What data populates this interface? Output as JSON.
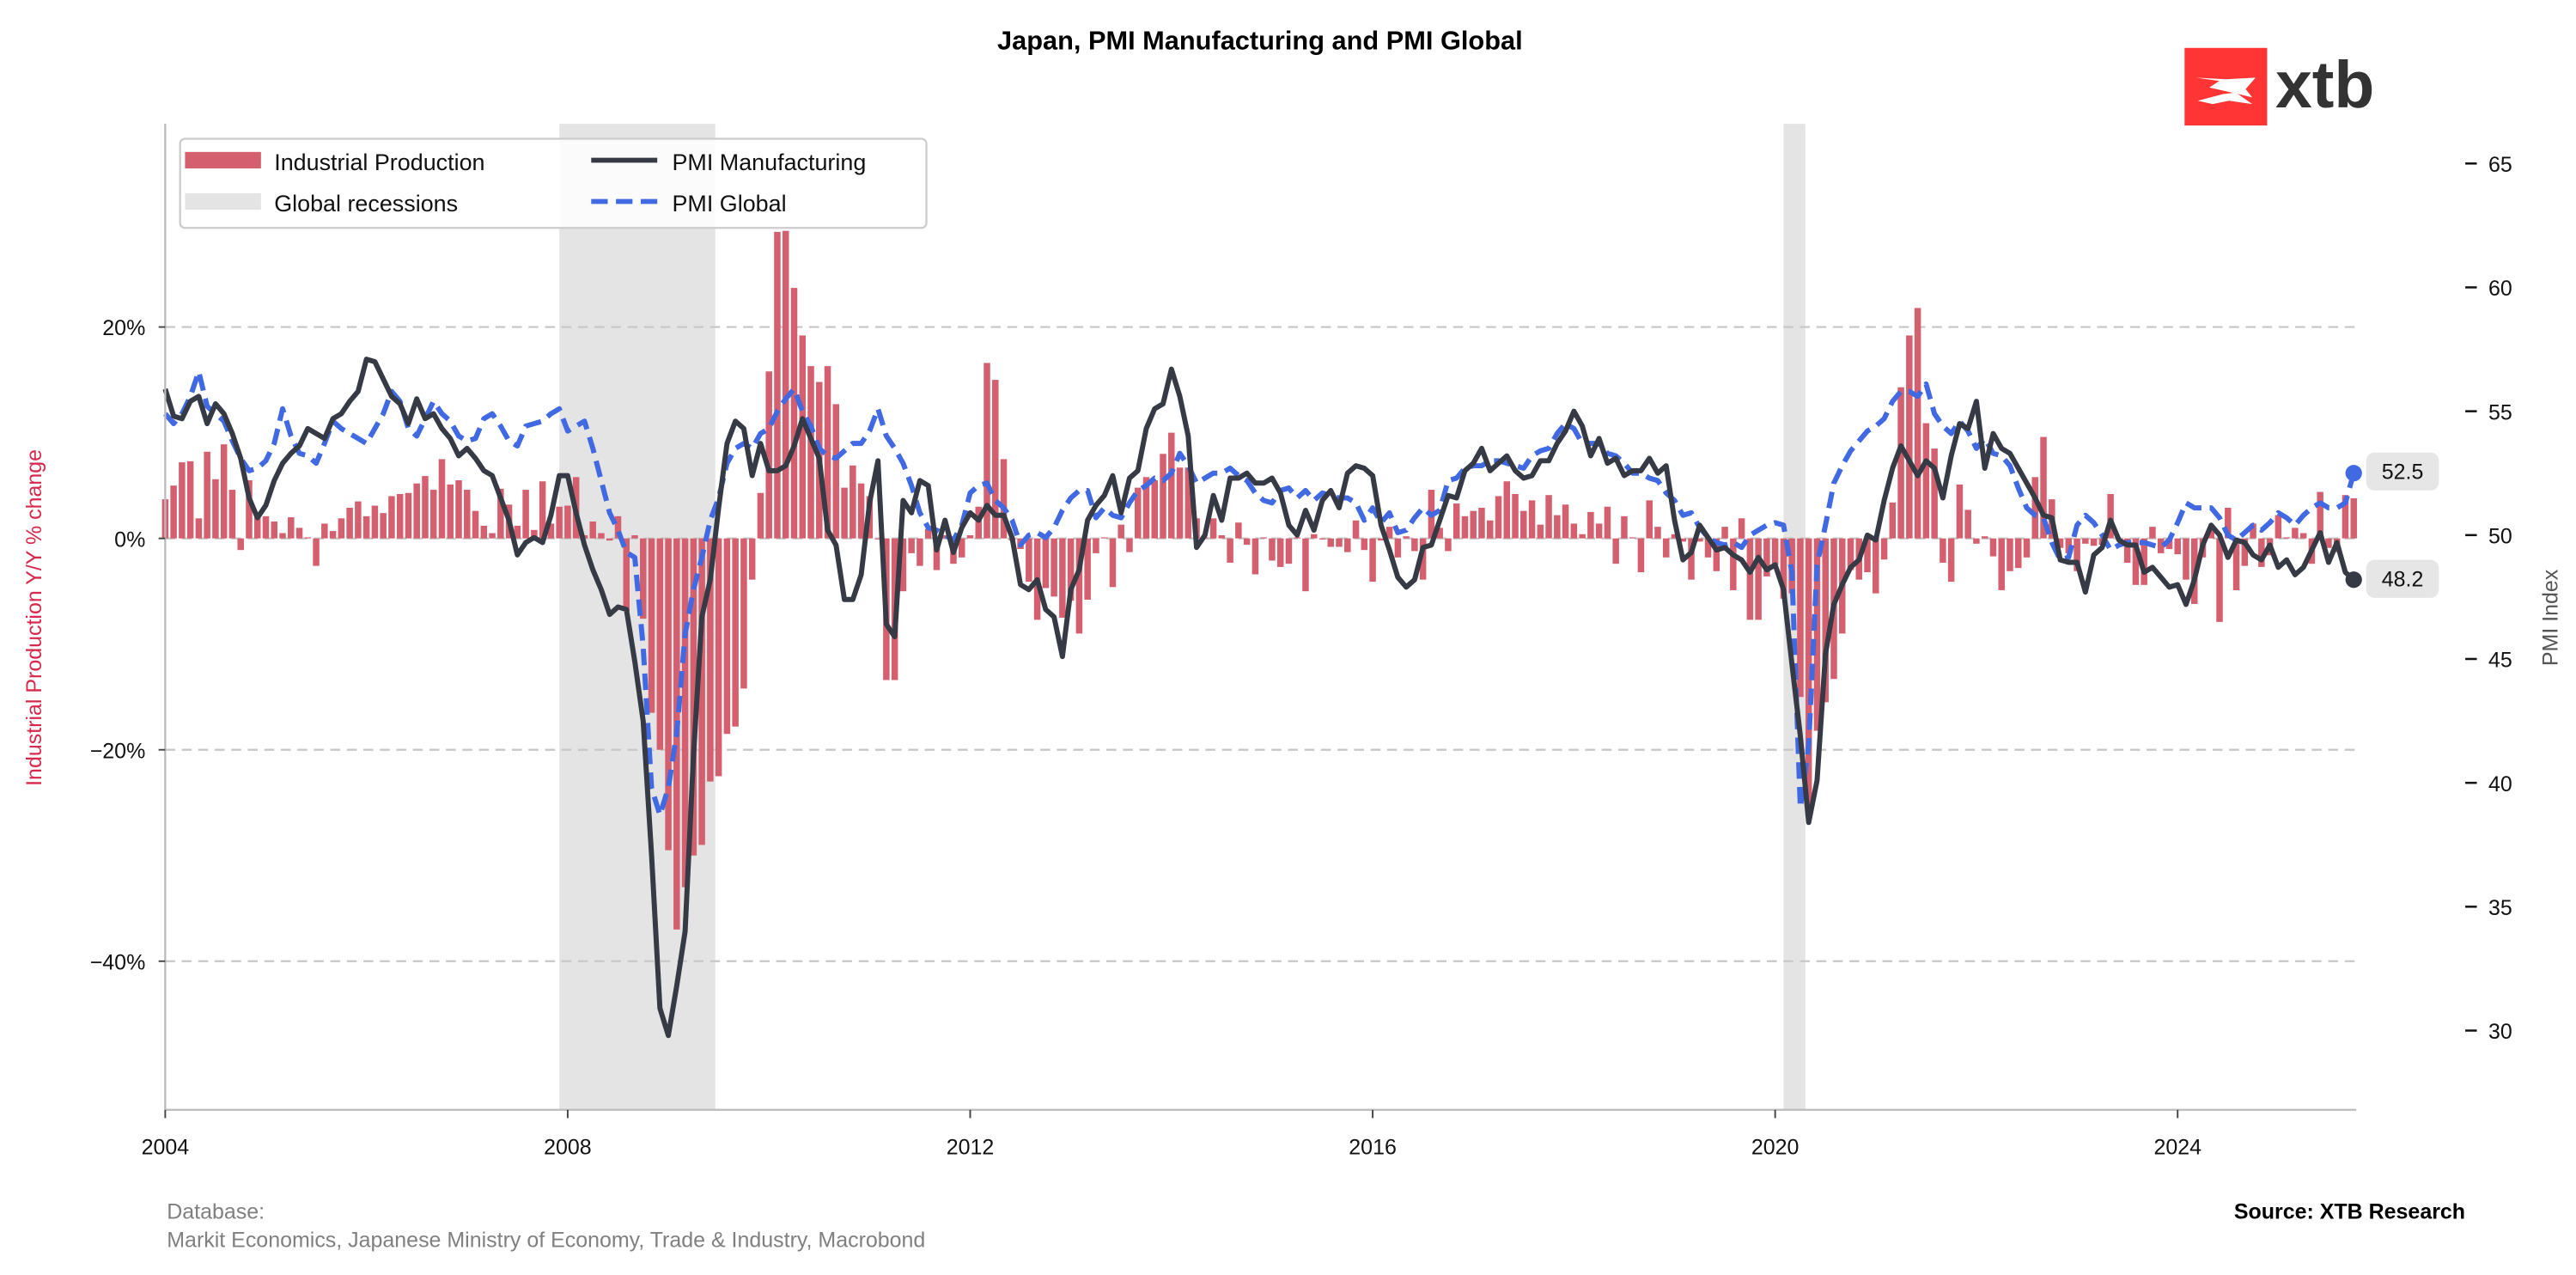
{
  "logo": {
    "text": "xtb",
    "brand_color": "#ff3434"
  },
  "footer": {
    "database_label": "Database:",
    "database_sources": "Markit Economics, Japanese Ministry of Economy, Trade & Industry, Macrobond",
    "source": "Source: XTB Research"
  },
  "chart_data": {
    "type": "bar+line",
    "title": "Japan, PMI Manufacturing and PMI Global",
    "frequency": "monthly",
    "ylabel_left": "Industrial Production Y/Y % change",
    "ylabel_right": "PMI Index",
    "ylim_left": [
      -54,
      39
    ],
    "ylim_right": [
      26.8,
      66.6
    ],
    "xlim": [
      "2004-01",
      "2025-10"
    ],
    "grid": "horizontal dashed at left-axis ticks",
    "legend_position": "top-left",
    "x_ticks": [
      "2004",
      "2008",
      "2012",
      "2016",
      "2020",
      "2024"
    ],
    "left_ticks": [
      {
        "value": 20,
        "label": "20%"
      },
      {
        "value": 0,
        "label": "0%"
      },
      {
        "value": -20,
        "label": "−20%"
      },
      {
        "value": -40,
        "label": "−40%"
      }
    ],
    "right_ticks": [
      {
        "value": 65,
        "label": "65"
      },
      {
        "value": 60,
        "label": "60"
      },
      {
        "value": 55,
        "label": "55"
      },
      {
        "value": 50,
        "label": "50"
      },
      {
        "value": 45,
        "label": "45"
      },
      {
        "value": 40,
        "label": "40"
      },
      {
        "value": 35,
        "label": "35"
      },
      {
        "value": 30,
        "label": "30"
      }
    ],
    "recessions": [
      {
        "name": "Global recessions",
        "start": "2007-12",
        "end": "2009-06"
      },
      {
        "name": "Global recessions",
        "start": "2020-02",
        "end": "2020-04"
      }
    ],
    "legend": [
      {
        "label": "Industrial Production",
        "kind": "bar"
      },
      {
        "label": "Global recessions",
        "kind": "shade"
      },
      {
        "label": "PMI Manufacturing",
        "kind": "line"
      },
      {
        "label": "PMI Global",
        "kind": "dashed-line"
      }
    ],
    "colors": {
      "industrial_production": "#d4606f",
      "recession": "#e4e4e4",
      "pmi_manufacturing": "#363a45",
      "pmi_global": "#4169e1",
      "left_axis_label": "#d6294c",
      "right_axis_label": "#555555",
      "grid": "#c8c8c8"
    },
    "end_labels": {
      "pmi_global": "52.5",
      "pmi_manufacturing": "48.2"
    },
    "series": {
      "industrial_production": {
        "name": "Industrial Production",
        "axis": "left",
        "unit": "%",
        "values_by_year": {
          "2004": [
            3.7,
            5.0,
            7.2,
            7.3,
            1.9,
            8.2,
            5.6,
            8.9,
            4.6,
            -1.1,
            5.5,
            2.2
          ],
          "2005": [
            2.1,
            1.6,
            0.5,
            2.0,
            1.0,
            0.1,
            -2.6,
            1.4,
            0.7,
            1.9,
            2.9,
            3.5
          ],
          "2006": [
            2.1,
            3.1,
            2.4,
            4.0,
            4.2,
            4.3,
            5.2,
            5.9,
            4.6,
            7.5,
            5.1,
            5.5
          ],
          "2007": [
            4.6,
            2.6,
            1.2,
            0.5,
            4.7,
            3.2,
            1.2,
            4.6,
            0.8,
            5.4,
            1.4,
            3.0
          ],
          "2008": [
            3.1,
            5.8,
            0.3,
            1.6,
            0.5,
            -0.2,
            2.1,
            -6.9,
            0.3,
            -7.6,
            -16.5,
            -20.0
          ],
          "2009": [
            -29.5,
            -37.0,
            -33.0,
            -30.0,
            -29.0,
            -23.0,
            -22.5,
            -18.5,
            -17.8,
            -14.2,
            -3.9,
            4.3
          ],
          "2010": [
            15.8,
            29.0,
            29.1,
            23.7,
            19.2,
            16.3,
            14.8,
            16.3,
            12.7,
            4.8,
            6.9,
            5.2
          ],
          "2011": [
            4.0,
            0.0,
            -13.4,
            -13.4,
            -5.0,
            -1.4,
            -2.6,
            0.9,
            -3.0,
            0.3,
            -2.4,
            -1.8
          ],
          "2012": [
            0.3,
            3.0,
            16.6,
            15.0,
            7.5,
            -0.2,
            -1.0,
            -4.1,
            -7.7,
            -4.7,
            -5.5,
            -7.5
          ],
          "2013": [
            -5.9,
            -9.0,
            -5.8,
            -1.4,
            0.1,
            -4.6,
            1.3,
            -1.3,
            4.8,
            5.8,
            5.5,
            8.0
          ],
          "2014": [
            10.0,
            6.7,
            6.7,
            1.9,
            0.1,
            1.9,
            0.3,
            -2.3,
            1.5,
            -0.6,
            -3.4,
            0.1
          ],
          "2015": [
            -2.1,
            -2.7,
            -2.4,
            0.1,
            -5.0,
            0.4,
            -0.1,
            -0.8,
            -0.8,
            -1.3,
            1.7,
            -1.1
          ],
          "2016": [
            -4.1,
            -0.2,
            1.1,
            -1.8,
            0.2,
            -1.2,
            -3.9,
            4.6,
            1.0,
            -1.2,
            3.3,
            2.1
          ],
          "2017": [
            2.6,
            2.9,
            1.7,
            4.0,
            5.4,
            4.2,
            2.6,
            3.6,
            1.3,
            4.1,
            2.2,
            3.2
          ],
          "2018": [
            1.4,
            0.4,
            2.5,
            1.4,
            3.0,
            -2.4,
            2.1,
            0.1,
            -3.2,
            3.6,
            1.1,
            -1.8
          ],
          "2019": [
            0.4,
            -0.3,
            -3.9,
            -0.3,
            -1.8,
            -3.1,
            1.1,
            -4.9,
            1.9,
            -7.7,
            -7.7,
            -3.6
          ],
          "2020": [
            -2.5,
            -5.7,
            -5.2,
            -15.0,
            -26.3,
            -18.2,
            -15.5,
            -13.3,
            -9.0,
            -3.0,
            -3.9,
            -3.2
          ],
          "2021": [
            -5.2,
            -2.0,
            3.4,
            14.3,
            19.2,
            21.8,
            10.9,
            8.5,
            -2.3,
            -4.1,
            5.1,
            2.7
          ],
          "2022": [
            -0.5,
            0.2,
            -1.7,
            -4.9,
            -3.1,
            -2.8,
            -1.8,
            5.8,
            9.6,
            3.7,
            -0.9,
            -1.4
          ],
          "2023": [
            -3.1,
            -0.5,
            -0.7,
            -0.6,
            4.2,
            0.0,
            -2.3,
            -4.4,
            -4.4,
            1.1,
            -1.4,
            -1.0
          ],
          "2024": [
            -1.5,
            -3.9,
            -6.2,
            -1.8,
            1.1,
            -7.9,
            2.9,
            -4.9,
            -2.6,
            1.4,
            -2.7,
            -1.6
          ],
          "2025": [
            2.2,
            0.1,
            1.0,
            0.5,
            -2.4,
            4.4,
            -0.9,
            -1.3,
            4.1,
            3.8
          ]
        }
      },
      "pmi_manufacturing": {
        "name": "PMI Manufacturing",
        "axis": "right",
        "values_by_year": {
          "2004": [
            55.9,
            54.8,
            54.7,
            55.4,
            55.6,
            54.5,
            55.3,
            54.9,
            54.1,
            53.1,
            51.5,
            50.7
          ],
          "2005": [
            51.2,
            52.2,
            52.9,
            53.3,
            53.6,
            54.3,
            54.1,
            53.9,
            54.7,
            54.9,
            55.4,
            55.8
          ],
          "2006": [
            57.1,
            57.0,
            56.3,
            55.6,
            55.3,
            54.5,
            55.5,
            54.7,
            54.9,
            54.3,
            53.9,
            53.2
          ],
          "2007": [
            53.5,
            53.1,
            52.6,
            52.4,
            51.5,
            50.6,
            49.2,
            49.7,
            49.9,
            49.7,
            50.8,
            52.4
          ],
          "2008": [
            52.4,
            50.9,
            49.6,
            48.6,
            47.8,
            46.8,
            47.1,
            47.0,
            44.9,
            42.5,
            37.1,
            30.9
          ],
          "2009": [
            29.8,
            31.8,
            34.0,
            41.1,
            46.7,
            48.2,
            51.1,
            53.7,
            54.6,
            54.3,
            52.4,
            53.7
          ],
          "2010": [
            52.6,
            52.6,
            52.8,
            53.6,
            54.7,
            53.9,
            53.1,
            50.2,
            49.6,
            47.4,
            47.4,
            48.4
          ],
          "2011": [
            51.3,
            53.0,
            46.4,
            45.9,
            51.4,
            50.9,
            52.2,
            52.0,
            49.4,
            50.6,
            49.3,
            50.3
          ],
          "2012": [
            50.9,
            50.6,
            51.2,
            50.8,
            50.8,
            49.9,
            48.0,
            47.8,
            48.2,
            47.0,
            46.7,
            45.1
          ],
          "2013": [
            47.8,
            48.6,
            50.6,
            51.2,
            51.6,
            52.4,
            50.9,
            52.3,
            52.6,
            54.3,
            55.1,
            55.3
          ],
          "2014": [
            56.7,
            55.6,
            54.0,
            49.5,
            50.0,
            51.6,
            50.6,
            52.3,
            52.3,
            52.5,
            52.1,
            52.1
          ],
          "2015": [
            52.3,
            51.7,
            50.4,
            50.0,
            51.0,
            50.2,
            51.4,
            51.8,
            51.1,
            52.5,
            52.8,
            52.7
          ],
          "2016": [
            52.4,
            50.4,
            49.4,
            48.3,
            47.9,
            48.2,
            49.5,
            49.6,
            50.6,
            51.6,
            51.5,
            52.6
          ],
          "2017": [
            52.9,
            53.5,
            52.6,
            52.9,
            53.2,
            52.6,
            52.3,
            52.4,
            53.0,
            53.0,
            53.7,
            54.2
          ],
          "2018": [
            55.0,
            54.4,
            53.2,
            53.9,
            52.9,
            53.1,
            52.4,
            52.6,
            52.6,
            53.1,
            52.5,
            52.8
          ],
          "2019": [
            50.6,
            49.0,
            49.3,
            50.4,
            49.9,
            49.4,
            49.5,
            49.2,
            49.0,
            48.5,
            49.1,
            48.6
          ],
          "2020": [
            48.8,
            47.8,
            44.8,
            41.9,
            38.4,
            40.1,
            45.2,
            47.2,
            48.0,
            48.7,
            49.0,
            50.0
          ],
          "2021": [
            49.8,
            51.4,
            52.7,
            53.6,
            53.0,
            52.4,
            53.0,
            52.7,
            51.5,
            53.2,
            54.5,
            54.3
          ],
          "2022": [
            55.4,
            52.7,
            54.1,
            53.5,
            53.3,
            52.7,
            52.1,
            51.5,
            50.8,
            50.7,
            49.0,
            48.9
          ],
          "2023": [
            48.9,
            47.7,
            49.2,
            49.5,
            50.6,
            49.8,
            49.6,
            49.6,
            48.5,
            48.7,
            48.3,
            47.9
          ],
          "2024": [
            48.0,
            47.2,
            48.2,
            49.6,
            50.4,
            50.0,
            49.1,
            49.8,
            49.7,
            49.2,
            49.0,
            49.6
          ],
          "2025": [
            48.7,
            49.0,
            48.4,
            48.7,
            49.4,
            50.1,
            48.9,
            49.7,
            48.5,
            48.2
          ]
        }
      },
      "pmi_global": {
        "name": "PMI Global",
        "axis": "right",
        "values_by_year": {
          "2004": [
            54.9,
            54.5,
            54.9,
            55.6,
            56.6,
            55.2,
            54.9,
            54.6,
            53.8,
            53.1,
            52.6,
            52.7
          ],
          "2005": [
            53.0,
            53.7,
            55.1,
            54.0,
            53.3,
            53.2,
            52.9,
            53.7,
            54.6,
            54.3,
            54.1,
            53.9
          ],
          "2006": [
            53.7,
            54.3,
            54.9,
            55.8,
            55.4,
            54.3,
            54.0,
            54.7,
            55.4,
            54.9,
            54.6,
            54.0
          ],
          "2007": [
            53.8,
            53.9,
            54.7,
            54.9,
            54.4,
            53.8,
            53.6,
            54.4,
            54.5,
            54.6,
            54.9,
            55.1
          ],
          "2008": [
            54.2,
            54.4,
            54.6,
            53.5,
            52.2,
            50.9,
            50.2,
            49.3,
            49.1,
            45.5,
            39.8,
            38.7
          ],
          "2009": [
            39.8,
            42.0,
            46.0,
            47.8,
            49.1,
            50.6,
            51.5,
            52.9,
            53.5,
            53.7,
            53.5,
            54.1
          ],
          "2010": [
            54.3,
            55.0,
            55.5,
            55.9,
            55.0,
            54.4,
            53.5,
            53.2,
            53.1,
            53.4,
            53.7,
            53.7
          ],
          "2011": [
            54.2,
            55.1,
            54.0,
            53.5,
            52.9,
            52.0,
            50.9,
            50.3,
            50.2,
            50.0,
            49.8,
            50.4
          ],
          "2012": [
            51.7,
            52.0,
            52.1,
            51.4,
            51.1,
            50.6,
            49.6,
            50.0,
            50.1,
            49.9,
            50.3,
            51.0
          ],
          "2013": [
            51.5,
            51.8,
            51.8,
            50.7,
            51.1,
            50.8,
            50.7,
            51.3,
            51.8,
            52.0,
            52.3,
            52.2
          ],
          "2014": [
            52.5,
            53.3,
            52.8,
            52.1,
            52.3,
            52.5,
            52.5,
            52.7,
            52.4,
            52.2,
            51.7,
            51.4
          ],
          "2015": [
            51.3,
            51.8,
            51.9,
            51.5,
            51.8,
            51.4,
            51.7,
            51.6,
            51.5,
            51.5,
            51.3,
            50.6
          ],
          "2016": [
            51.1,
            50.5,
            50.9,
            50.1,
            50.2,
            50.7,
            51.1,
            50.8,
            51.0,
            52.2,
            52.3,
            52.7
          ],
          "2017": [
            52.8,
            52.8,
            53.0,
            53.0,
            52.9,
            52.8,
            52.7,
            53.2,
            53.4,
            53.5,
            54.1,
            54.5
          ],
          "2018": [
            54.3,
            53.7,
            53.7,
            53.7,
            53.3,
            53.2,
            52.9,
            52.5,
            52.5,
            52.3,
            52.2,
            51.7
          ],
          "2019": [
            51.4,
            50.8,
            50.9,
            50.3,
            49.9,
            49.7,
            49.6,
            49.7,
            49.5,
            50.0,
            50.2,
            50.4
          ],
          "2020": [
            50.5,
            50.4,
            48.5,
            39.0,
            41.5,
            48.8,
            50.4,
            52.1,
            52.8,
            53.4,
            53.8,
            54.2
          ],
          "2021": [
            54.4,
            54.7,
            55.4,
            55.8,
            55.8,
            55.6,
            56.1,
            54.9,
            54.4,
            54.1,
            54.6,
            54.2
          ],
          "2022": [
            53.5,
            53.9,
            53.3,
            53.2,
            52.8,
            51.9,
            51.1,
            50.8,
            50.7,
            49.7,
            49.0,
            49.1
          ],
          "2023": [
            50.4,
            50.8,
            50.5,
            50.0,
            49.4,
            49.6,
            49.7,
            49.7,
            49.7,
            49.6,
            49.5,
            49.8
          ],
          "2024": [
            50.5,
            51.3,
            51.1,
            51.1,
            51.1,
            50.7,
            50.0,
            49.8,
            50.1,
            50.4,
            50.2,
            50.5
          ],
          "2025": [
            50.9,
            50.7,
            50.4,
            50.8,
            51.1,
            51.3,
            51.1,
            51.1,
            51.3,
            52.5
          ]
        }
      }
    }
  }
}
